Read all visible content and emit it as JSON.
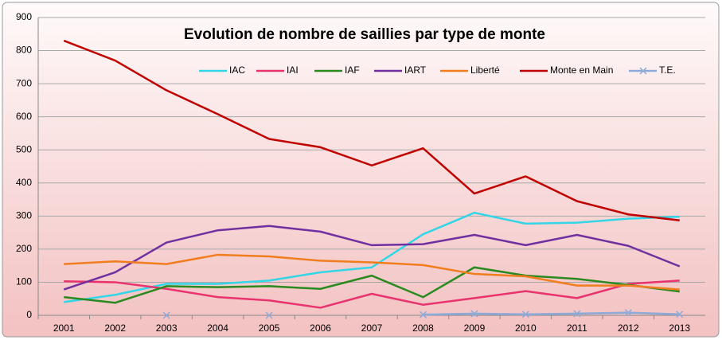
{
  "chart_data": {
    "type": "line",
    "title": "Evolution de nombre de saillies par type de monte",
    "categories": [
      "2001",
      "2002",
      "2003",
      "2004",
      "2005",
      "2006",
      "2007",
      "2008",
      "2009",
      "2010",
      "2011",
      "2012",
      "2013"
    ],
    "series": [
      {
        "name": "IAC",
        "color": "#33d6e6",
        "values": [
          40,
          62,
          95,
          95,
          105,
          130,
          145,
          245,
          310,
          277,
          280,
          292,
          298
        ]
      },
      {
        "name": "IAI",
        "color": "#e8336e",
        "values": [
          103,
          100,
          80,
          55,
          45,
          23,
          65,
          32,
          52,
          73,
          52,
          95,
          105
        ]
      },
      {
        "name": "IAF",
        "color": "#2a8a1f",
        "values": [
          55,
          38,
          88,
          85,
          88,
          80,
          120,
          55,
          145,
          120,
          110,
          92,
          72
        ]
      },
      {
        "name": "IART",
        "color": "#7030a0",
        "values": [
          78,
          130,
          220,
          257,
          270,
          253,
          212,
          215,
          243,
          212,
          243,
          210,
          148
        ]
      },
      {
        "name": "Liberté",
        "color": "#f07d1e",
        "values": [
          155,
          163,
          155,
          183,
          178,
          165,
          160,
          152,
          125,
          118,
          90,
          90,
          78
        ]
      },
      {
        "name": "Monte en Main",
        "color": "#c00000",
        "values": [
          830,
          770,
          680,
          608,
          533,
          508,
          453,
          505,
          368,
          420,
          345,
          305,
          287
        ]
      },
      {
        "name": "T.E.",
        "color": "#8eaad8",
        "marker": "x",
        "values": [
          null,
          null,
          0,
          null,
          0,
          null,
          null,
          2,
          5,
          3,
          5,
          8,
          3
        ]
      }
    ],
    "ylim": [
      0,
      900
    ],
    "yticks": [
      0,
      100,
      200,
      300,
      400,
      500,
      600,
      700,
      800,
      900
    ],
    "grid": true,
    "legend": "top"
  }
}
